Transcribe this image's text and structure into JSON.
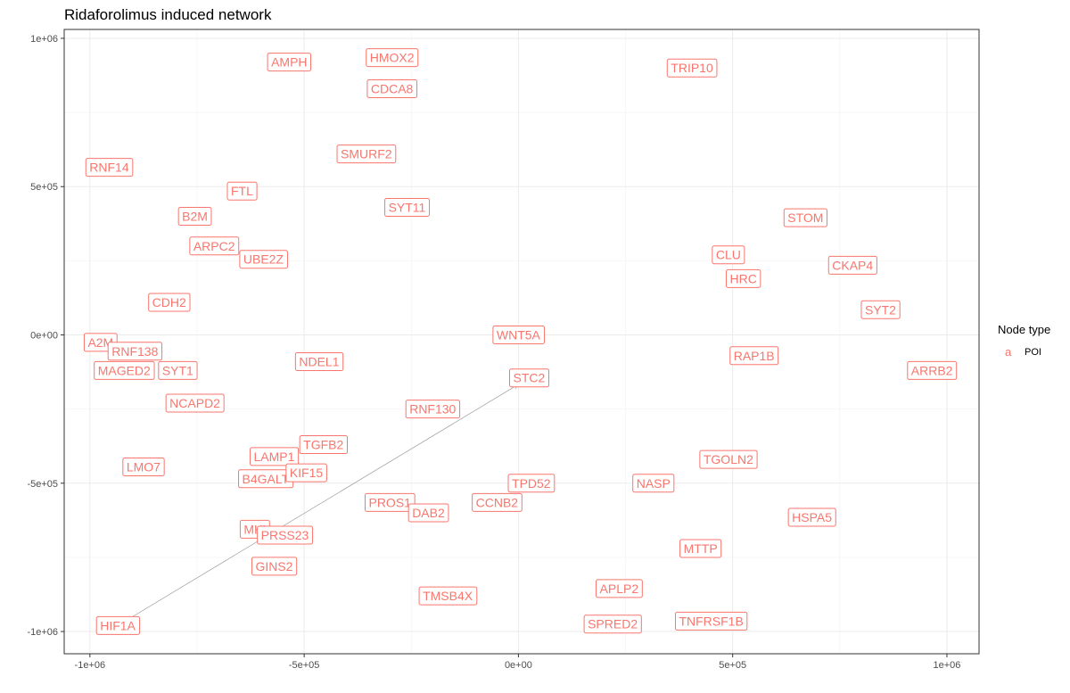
{
  "chart_data": {
    "type": "scatter",
    "title": "Ridaforolimus induced network",
    "xlim": [
      -1060000,
      1075000
    ],
    "ylim": [
      -1075000,
      1030000
    ],
    "x_ticks": [
      -1000000,
      -500000,
      0,
      500000,
      1000000
    ],
    "x_tick_labels": [
      "-1e+06",
      "-5e+05",
      "0e+00",
      "5e+05",
      "1e+06"
    ],
    "y_ticks": [
      -1000000,
      -500000,
      0,
      500000,
      1000000
    ],
    "y_tick_labels": [
      "-1e+06",
      "-5e+05",
      "0e+00",
      "5e+05",
      "1e+06"
    ],
    "grid": true,
    "legend": {
      "title": "Node type",
      "key": "a",
      "label": "POI",
      "position": "right"
    },
    "nodes": [
      {
        "label": "AMPH",
        "x": -535000,
        "y": 920000
      },
      {
        "label": "HMOX2",
        "x": -295000,
        "y": 935000
      },
      {
        "label": "CDCA8",
        "x": -295000,
        "y": 830000
      },
      {
        "label": "TRIP10",
        "x": 405000,
        "y": 900000
      },
      {
        "label": "SMURF2",
        "x": -355000,
        "y": 610000
      },
      {
        "label": "RNF14",
        "x": -955000,
        "y": 565000
      },
      {
        "label": "FTL",
        "x": -645000,
        "y": 485000
      },
      {
        "label": "B2M",
        "x": -755000,
        "y": 400000
      },
      {
        "label": "SYT11",
        "x": -260000,
        "y": 430000
      },
      {
        "label": "STOM",
        "x": 670000,
        "y": 395000
      },
      {
        "label": "ARPC2",
        "x": -710000,
        "y": 300000
      },
      {
        "label": "UBE2Z",
        "x": -595000,
        "y": 255000
      },
      {
        "label": "CLU",
        "x": 490000,
        "y": 270000
      },
      {
        "label": "CKAP4",
        "x": 780000,
        "y": 235000
      },
      {
        "label": "HRC",
        "x": 525000,
        "y": 190000
      },
      {
        "label": "CDH2",
        "x": -815000,
        "y": 110000
      },
      {
        "label": "SYT2",
        "x": 845000,
        "y": 85000
      },
      {
        "label": "A2M",
        "x": -975000,
        "y": -25000
      },
      {
        "label": "RNF138",
        "x": -895000,
        "y": -55000
      },
      {
        "label": "MAGED2",
        "x": -920000,
        "y": -120000
      },
      {
        "label": "SYT1",
        "x": -795000,
        "y": -120000
      },
      {
        "label": "NDEL1",
        "x": -465000,
        "y": -90000
      },
      {
        "label": "RAP1B",
        "x": 550000,
        "y": -70000
      },
      {
        "label": "ARRB2",
        "x": 965000,
        "y": -120000
      },
      {
        "label": "STC2",
        "x": 25000,
        "y": -145000
      },
      {
        "label": "NCAPD2",
        "x": -755000,
        "y": -230000
      },
      {
        "label": "RNF130",
        "x": -200000,
        "y": -250000
      },
      {
        "label": "TGFB2",
        "x": -455000,
        "y": -370000
      },
      {
        "label": "LAMP1",
        "x": -570000,
        "y": -410000
      },
      {
        "label": "TGOLN2",
        "x": 490000,
        "y": -420000
      },
      {
        "label": "LMO7",
        "x": -875000,
        "y": -445000
      },
      {
        "label": "B4GALT",
        "x": -590000,
        "y": -485000
      },
      {
        "label": "KIF15",
        "x": -495000,
        "y": -465000
      },
      {
        "label": "TPD52",
        "x": 30000,
        "y": -500000
      },
      {
        "label": "NASP",
        "x": 315000,
        "y": -500000
      },
      {
        "label": "PROS1",
        "x": -300000,
        "y": -565000
      },
      {
        "label": "CCNB2",
        "x": -50000,
        "y": -565000
      },
      {
        "label": "DAB2",
        "x": -210000,
        "y": -600000
      },
      {
        "label": "HSPA5",
        "x": 685000,
        "y": -615000
      },
      {
        "label": "MKI",
        "x": -615000,
        "y": -655000
      },
      {
        "label": "PRSS23",
        "x": -545000,
        "y": -675000
      },
      {
        "label": "MTTP",
        "x": 425000,
        "y": -720000
      },
      {
        "label": "GINS2",
        "x": -570000,
        "y": -780000
      },
      {
        "label": "APLP2",
        "x": 235000,
        "y": -855000
      },
      {
        "label": "TMSB4X",
        "x": -165000,
        "y": -880000
      },
      {
        "label": "SPRED2",
        "x": 220000,
        "y": -975000
      },
      {
        "label": "TNFRSF1B",
        "x": 450000,
        "y": -965000
      },
      {
        "label": "HIF1A",
        "x": -935000,
        "y": -980000
      },
      {
        "label": "WNT5A",
        "x": 0,
        "y": 0
      }
    ],
    "edges": [
      {
        "from": "HIF1A",
        "to": "STC2"
      }
    ]
  }
}
